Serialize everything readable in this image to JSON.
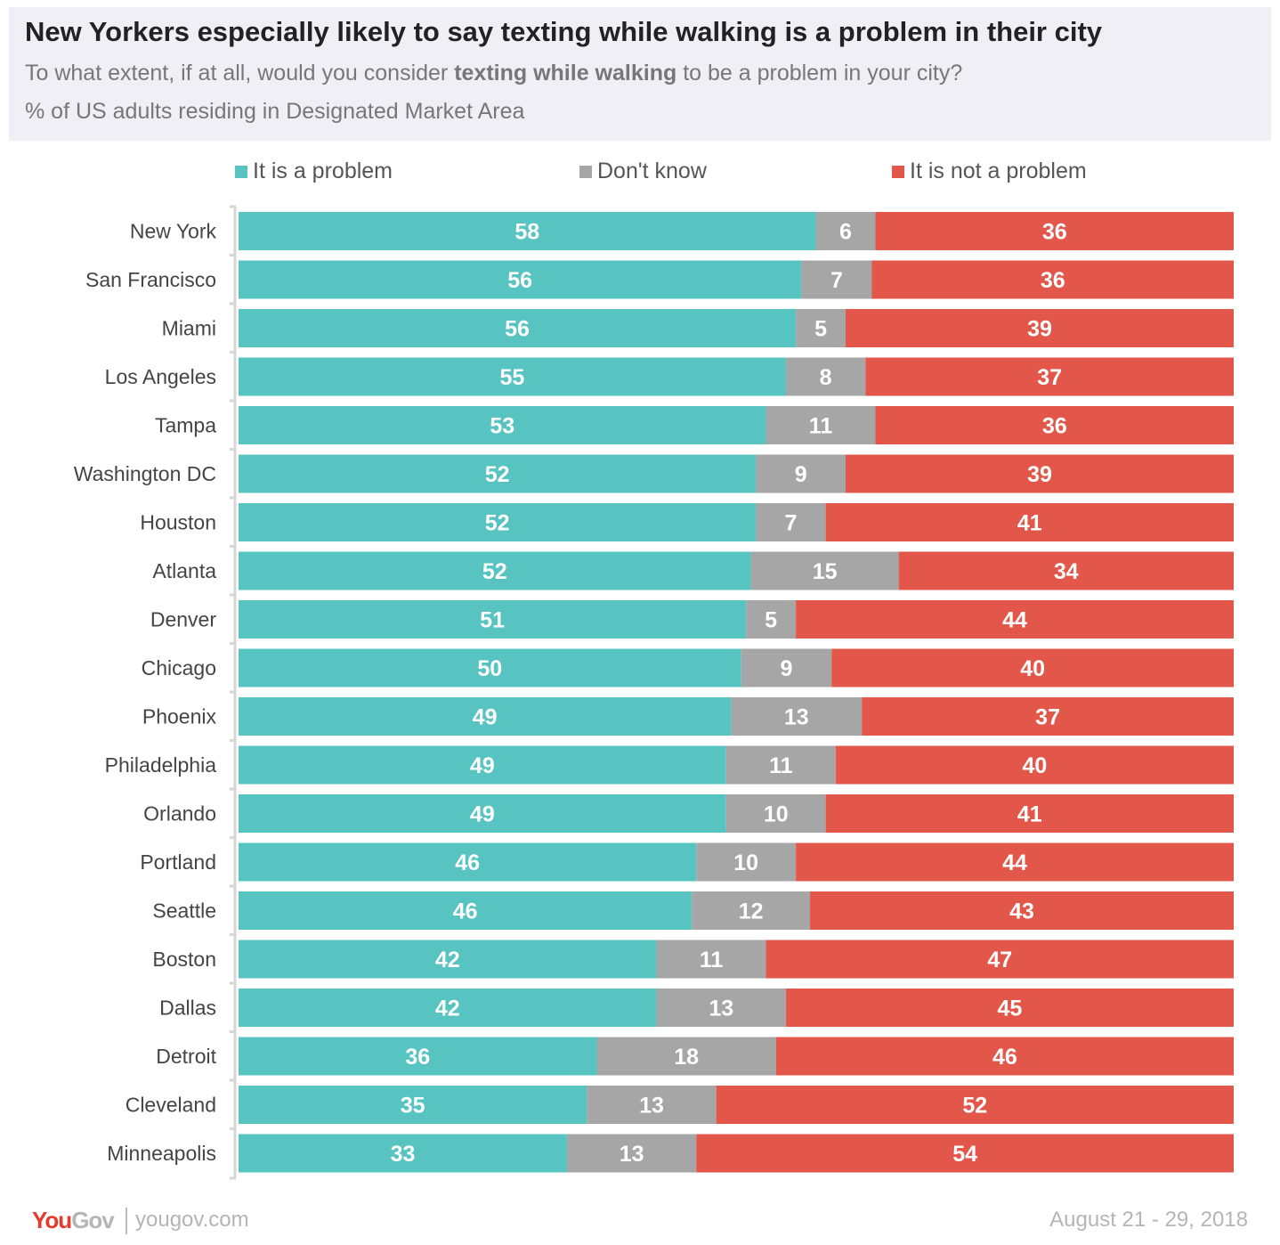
{
  "header": {
    "title": "New Yorkers especially likely to say texting while walking is a problem in their city",
    "subtitle_pre": "To what extent, if at all, would you consider ",
    "subtitle_bold": "texting while walking",
    "subtitle_post": " to be a problem in your city?",
    "note": "% of US adults residing in Designated Market Area"
  },
  "footer": {
    "logo": "YouGov",
    "url": "yougov.com",
    "date": "August 21 - 29, 2018"
  },
  "chart_data": {
    "type": "bar",
    "orientation": "horizontal",
    "stacked": true,
    "legend_position": "top",
    "categories": [
      "New York",
      "San Francisco",
      "Miami",
      "Los Angeles",
      "Tampa",
      "Washington DC",
      "Houston",
      "Atlanta",
      "Denver",
      "Chicago",
      "Phoenix",
      "Philadelphia",
      "Orlando",
      "Portland",
      "Seattle",
      "Boston",
      "Dallas",
      "Detroit",
      "Cleveland",
      "Minneapolis"
    ],
    "series": [
      {
        "name": "It is a problem",
        "color": "#57c4c2",
        "values": [
          58,
          56,
          56,
          55,
          53,
          52,
          52,
          52,
          51,
          50,
          49,
          49,
          49,
          46,
          46,
          42,
          42,
          36,
          35,
          33
        ]
      },
      {
        "name": "Don't know",
        "color": "#a6a6a6",
        "values": [
          6,
          7,
          5,
          8,
          11,
          9,
          7,
          15,
          5,
          9,
          13,
          11,
          10,
          10,
          12,
          11,
          13,
          18,
          13,
          13
        ]
      },
      {
        "name": "It is not a problem",
        "color": "#e3574a",
        "values": [
          36,
          36,
          39,
          37,
          36,
          39,
          41,
          34,
          44,
          40,
          37,
          40,
          41,
          44,
          43,
          47,
          45,
          46,
          52,
          54
        ]
      }
    ]
  }
}
